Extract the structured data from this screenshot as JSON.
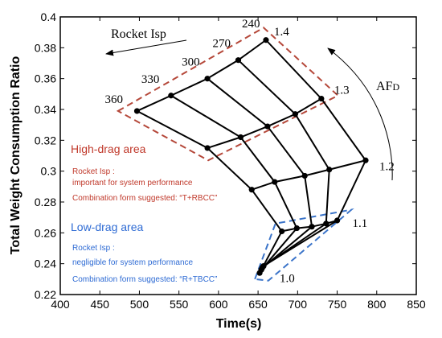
{
  "chart_data": {
    "type": "line",
    "xlabel": "Time(s)",
    "ylabel": "Total Weight Consumption Ratio",
    "xlim": [
      400,
      850
    ],
    "ylim": [
      0.22,
      0.4
    ],
    "x_ticks": [
      "400",
      "450",
      "500",
      "550",
      "600",
      "650",
      "700",
      "750",
      "800",
      "850"
    ],
    "y_ticks": [
      "0.22",
      "0.24",
      "0.26",
      "0.28",
      "0.3",
      "0.32",
      "0.34",
      "0.36",
      "0.38",
      "0.4"
    ],
    "isp_values": [
      "360",
      "330",
      "300",
      "270",
      "240"
    ],
    "afd_values": [
      "1.0",
      "1.1",
      "1.2",
      "1.3",
      "1.4"
    ],
    "grid": [
      [
        [
          652,
          0.234
        ],
        [
          654,
          0.236
        ],
        [
          655,
          0.237
        ],
        [
          656,
          0.238
        ],
        [
          657,
          0.2385
        ]
      ],
      [
        [
          680,
          0.261
        ],
        [
          699,
          0.263
        ],
        [
          718,
          0.264
        ],
        [
          736,
          0.266
        ],
        [
          750,
          0.268
        ]
      ],
      [
        [
          642,
          0.288
        ],
        [
          671,
          0.293
        ],
        [
          709,
          0.297
        ],
        [
          740,
          0.301
        ],
        [
          786,
          0.307
        ]
      ],
      [
        [
          586,
          0.315
        ],
        [
          628,
          0.322
        ],
        [
          662,
          0.329
        ],
        [
          697,
          0.337
        ],
        [
          730,
          0.347
        ]
      ],
      [
        [
          497,
          0.339
        ],
        [
          540,
          0.349
        ],
        [
          586,
          0.36
        ],
        [
          625,
          0.372
        ],
        [
          660,
          0.385
        ]
      ]
    ],
    "annotations": {
      "rocket_isp": "Rocket Isp",
      "afd_main": "AF",
      "afd_sub": "D",
      "high_drag": {
        "title": "High-drag area",
        "lines": [
          "Rocket Isp :",
          "important for system performance",
          "Combination form suggested: “T+RBCC”"
        ]
      },
      "low_drag": {
        "title": "Low-drag area",
        "lines": [
          "Rocket Isp :",
          "negligible for system performance",
          "Combination form suggested: “R+TBCC”"
        ]
      }
    },
    "colors": {
      "high": "#c0392b",
      "low": "#2e6bd4",
      "high_box": "#b5483a",
      "low_box": "#3b74c9"
    }
  }
}
